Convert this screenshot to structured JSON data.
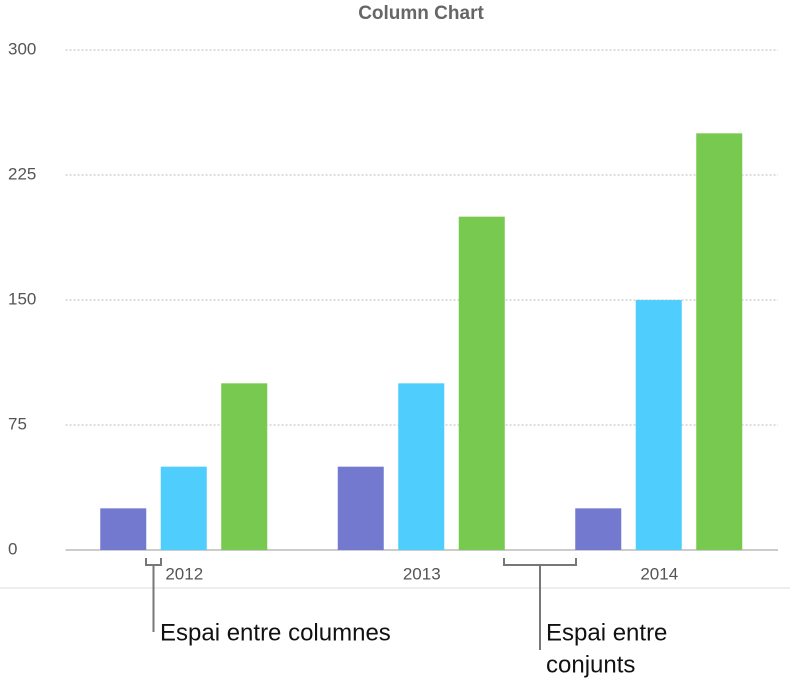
{
  "chart_data": {
    "type": "bar",
    "title": "Column Chart",
    "categories": [
      "2012",
      "2013",
      "2014"
    ],
    "series": [
      {
        "color": "#7279cf",
        "values": [
          25,
          50,
          25
        ]
      },
      {
        "color": "#4fcdfc",
        "values": [
          50,
          100,
          150
        ]
      },
      {
        "color": "#77c94f",
        "values": [
          100,
          200,
          250
        ]
      }
    ],
    "ylim": [
      0,
      300
    ],
    "yticks": [
      0,
      75,
      150,
      225,
      300
    ],
    "grid": true,
    "annotations": [
      {
        "lines": [
          "Espai entre columnes"
        ]
      },
      {
        "lines": [
          "Espai entre",
          "conjunts"
        ]
      }
    ]
  }
}
